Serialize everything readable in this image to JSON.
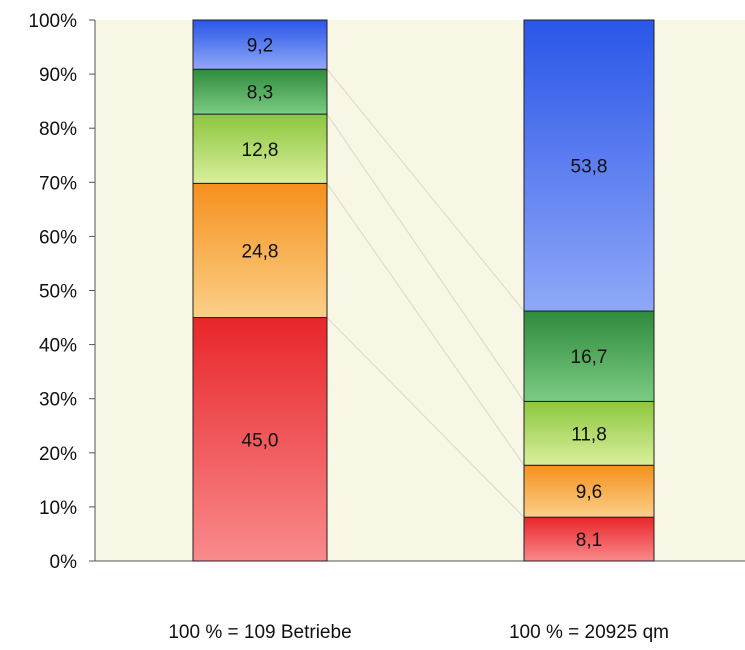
{
  "chart_data": {
    "type": "bar",
    "stacked": true,
    "percent": true,
    "title": "",
    "xlabel": "",
    "ylabel": "",
    "ylim": [
      0,
      100
    ],
    "y_ticks": [
      "0%",
      "10%",
      "20%",
      "30%",
      "40%",
      "50%",
      "60%",
      "70%",
      "80%",
      "90%",
      "100%"
    ],
    "categories": [
      "100 % = 109 Betriebe",
      "100 % = 20925 qm"
    ],
    "series": [
      {
        "values": [
          45.0,
          8.1
        ],
        "labels": [
          "45,0",
          "8,1"
        ],
        "color": "#e8262a",
        "color_light": "#f98a8c"
      },
      {
        "values": [
          24.8,
          9.6
        ],
        "labels": [
          "24,8",
          "9,6"
        ],
        "color": "#f5901d",
        "color_light": "#fbd088"
      },
      {
        "values": [
          12.8,
          11.8
        ],
        "labels": [
          "12,8",
          "11,8"
        ],
        "color": "#8cc63e",
        "color_light": "#d9ef9c"
      },
      {
        "values": [
          8.3,
          16.7
        ],
        "labels": [
          "8,3",
          "16,7"
        ],
        "color": "#2e8b3c",
        "color_light": "#7ccb84"
      },
      {
        "values": [
          9.2,
          53.8
        ],
        "labels": [
          "9,2",
          "53,8"
        ],
        "color": "#2a55e8",
        "color_light": "#8fa8f8"
      }
    ],
    "grid": false,
    "plot_background": "#f8f6e4",
    "connectors": true
  }
}
